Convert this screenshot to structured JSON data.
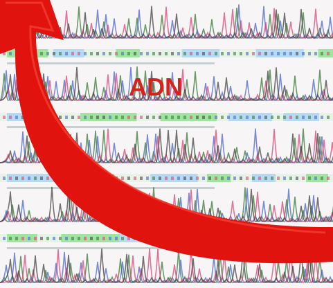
{
  "label": "ADN"
}
